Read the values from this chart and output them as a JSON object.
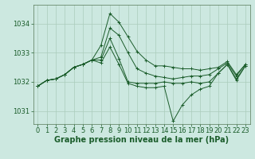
{
  "background_color": "#cce8e0",
  "grid_color": "#aaccbb",
  "line_color": "#1a5c2a",
  "marker_color": "#1a5c2a",
  "xlabel": "Graphe pression niveau de la mer (hPa)",
  "xlabel_fontsize": 7,
  "tick_fontsize": 6,
  "xlim": [
    -0.5,
    23.5
  ],
  "ylim": [
    1030.55,
    1034.65
  ],
  "yticks": [
    1031,
    1032,
    1033,
    1034
  ],
  "xticks": [
    0,
    1,
    2,
    3,
    4,
    5,
    6,
    7,
    8,
    9,
    10,
    11,
    12,
    13,
    14,
    15,
    16,
    17,
    18,
    19,
    20,
    21,
    22,
    23
  ],
  "series": [
    [
      1031.85,
      1032.05,
      1032.1,
      1032.25,
      1032.5,
      1032.6,
      1032.75,
      1033.25,
      1034.35,
      1034.05,
      1033.55,
      1033.05,
      1032.75,
      1032.55,
      1032.55,
      1032.5,
      1032.45,
      1032.45,
      1032.4,
      1032.45,
      1032.5,
      1032.7,
      1032.25,
      1032.6
    ],
    [
      1031.85,
      1032.05,
      1032.1,
      1032.25,
      1032.5,
      1032.6,
      1032.75,
      1032.85,
      1033.85,
      1033.6,
      1033.0,
      1032.45,
      1032.3,
      1032.2,
      1032.15,
      1032.1,
      1032.15,
      1032.2,
      1032.2,
      1032.25,
      1032.45,
      1032.65,
      1032.2,
      1032.6
    ],
    [
      1031.85,
      1032.05,
      1032.1,
      1032.25,
      1032.5,
      1032.6,
      1032.75,
      1032.75,
      1033.5,
      1032.8,
      1032.0,
      1031.95,
      1031.95,
      1031.95,
      1032.0,
      1031.95,
      1031.95,
      1032.0,
      1031.95,
      1032.0,
      1032.3,
      1032.6,
      1032.1,
      1032.55
    ],
    [
      1031.85,
      1032.05,
      1032.1,
      1032.25,
      1032.5,
      1032.6,
      1032.75,
      1032.65,
      1033.2,
      1032.6,
      1031.95,
      1031.85,
      1031.8,
      1031.8,
      1031.85,
      1030.65,
      1031.2,
      1031.55,
      1031.75,
      1031.85,
      1032.3,
      1032.6,
      1032.05,
      1032.55
    ]
  ]
}
